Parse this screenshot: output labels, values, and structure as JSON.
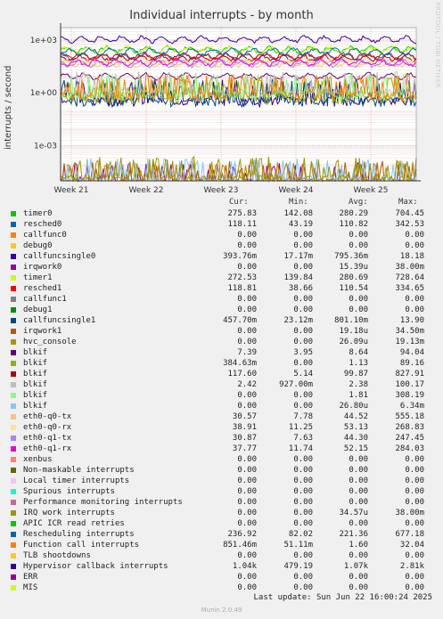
{
  "title": "Individual interrupts - by month",
  "side_text": "RRDTOOL / TOBI OETIKER",
  "ylabel": "interrupts / second",
  "legend_headers": {
    "cur": "Cur:",
    "min": "Min:",
    "avg": "Avg:",
    "max": "Max:"
  },
  "last_update": "Last update: Sun Jun 22 16:00:24 2025",
  "munin_version": "Munin 2.0.49",
  "chart_data": {
    "type": "line",
    "title": "Individual interrupts - by month",
    "ylabel": "interrupts / second",
    "yscale": "log",
    "ylim": [
      1e-05,
      5000
    ],
    "y_ticks": [
      "1e-03",
      "1e+00",
      "1e+03"
    ],
    "x_ticks": [
      "Week 21",
      "Week 22",
      "Week 23",
      "Week 24",
      "Week 25"
    ],
    "grid": true,
    "series": [
      {
        "name": "timer0",
        "color": "#00cc00",
        "cur": "275.83",
        "min": "142.08",
        "avg": "280.29",
        "max": "704.45"
      },
      {
        "name": "resched0",
        "color": "#0066b3",
        "cur": "118.11",
        "min": "43.19",
        "avg": "110.82",
        "max": "342.53"
      },
      {
        "name": "callfunc0",
        "color": "#ff8000",
        "cur": "0.00",
        "min": "0.00",
        "avg": "0.00",
        "max": "0.00"
      },
      {
        "name": "debug0",
        "color": "#ffcc00",
        "cur": "0.00",
        "min": "0.00",
        "avg": "0.00",
        "max": "0.00"
      },
      {
        "name": "callfuncsingle0",
        "color": "#330099",
        "cur": "393.76m",
        "min": "17.17m",
        "avg": "795.36m",
        "max": "18.18"
      },
      {
        "name": "irqwork0",
        "color": "#990099",
        "cur": "0.00",
        "min": "0.00",
        "avg": "15.39u",
        "max": "38.00m"
      },
      {
        "name": "timer1",
        "color": "#ccff00",
        "cur": "272.53",
        "min": "139.84",
        "avg": "280.69",
        "max": "728.64"
      },
      {
        "name": "resched1",
        "color": "#ff0000",
        "cur": "118.81",
        "min": "38.66",
        "avg": "110.54",
        "max": "334.65"
      },
      {
        "name": "callfunc1",
        "color": "#808080",
        "cur": "0.00",
        "min": "0.00",
        "avg": "0.00",
        "max": "0.00"
      },
      {
        "name": "debug1",
        "color": "#008f00",
        "cur": "0.00",
        "min": "0.00",
        "avg": "0.00",
        "max": "0.00"
      },
      {
        "name": "callfuncsingle1",
        "color": "#00487d",
        "cur": "457.70m",
        "min": "23.12m",
        "avg": "801.10m",
        "max": "13.90"
      },
      {
        "name": "irqwork1",
        "color": "#b35a00",
        "cur": "0.00",
        "min": "0.00",
        "avg": "19.18u",
        "max": "34.50m"
      },
      {
        "name": "hvc_console",
        "color": "#b38f00",
        "cur": "0.00",
        "min": "0.00",
        "avg": "26.09u",
        "max": "19.13m"
      },
      {
        "name": "blkif",
        "color": "#6b006b",
        "cur": "7.39",
        "min": "3.95",
        "avg": "8.64",
        "max": "94.04"
      },
      {
        "name": "blkif",
        "color": "#8fb300",
        "cur": "384.63m",
        "min": "0.00",
        "avg": "1.13",
        "max": "89.16"
      },
      {
        "name": "blkif",
        "color": "#b30000",
        "cur": "117.60",
        "min": "5.14",
        "avg": "99.87",
        "max": "827.91"
      },
      {
        "name": "blkif",
        "color": "#bebebe",
        "cur": "2.42",
        "min": "927.00m",
        "avg": "2.38",
        "max": "100.17"
      },
      {
        "name": "blkif",
        "color": "#80ff80",
        "cur": "0.00",
        "min": "0.00",
        "avg": "1.81",
        "max": "308.19"
      },
      {
        "name": "blkif",
        "color": "#80c9ff",
        "cur": "0.00",
        "min": "0.00",
        "avg": "26.80u",
        "max": "6.34m"
      },
      {
        "name": "eth0-q0-tx",
        "color": "#ffc080",
        "cur": "30.57",
        "min": "7.78",
        "avg": "44.52",
        "max": "555.18"
      },
      {
        "name": "eth0-q0-rx",
        "color": "#ffe680",
        "cur": "38.91",
        "min": "11.25",
        "avg": "53.13",
        "max": "268.83"
      },
      {
        "name": "eth0-q1-tx",
        "color": "#aa80ff",
        "cur": "30.87",
        "min": "7.63",
        "avg": "44.30",
        "max": "247.45"
      },
      {
        "name": "eth0-q1-rx",
        "color": "#ee00cc",
        "cur": "37.77",
        "min": "11.74",
        "avg": "52.15",
        "max": "284.03"
      },
      {
        "name": "xenbus",
        "color": "#ff8080",
        "cur": "0.00",
        "min": "0.00",
        "avg": "0.00",
        "max": "0.00"
      },
      {
        "name": "Non-maskable interrupts",
        "color": "#666600",
        "cur": "0.00",
        "min": "0.00",
        "avg": "0.00",
        "max": "0.00"
      },
      {
        "name": "Local timer interrupts",
        "color": "#ffbfff",
        "cur": "0.00",
        "min": "0.00",
        "avg": "0.00",
        "max": "0.00"
      },
      {
        "name": "Spurious interrupts",
        "color": "#00ffcc",
        "cur": "0.00",
        "min": "0.00",
        "avg": "0.00",
        "max": "0.00"
      },
      {
        "name": "Performance monitoring interrupts",
        "color": "#cc6699",
        "cur": "0.00",
        "min": "0.00",
        "avg": "0.00",
        "max": "0.00"
      },
      {
        "name": "IRQ work interrupts",
        "color": "#999900",
        "cur": "0.00",
        "min": "0.00",
        "avg": "34.57u",
        "max": "38.00m"
      },
      {
        "name": "APIC ICR read retries",
        "color": "#00cc00",
        "cur": "0.00",
        "min": "0.00",
        "avg": "0.00",
        "max": "0.00"
      },
      {
        "name": "Rescheduling interrupts",
        "color": "#0066b3",
        "cur": "236.92",
        "min": "82.02",
        "avg": "221.36",
        "max": "677.18"
      },
      {
        "name": "Function call interrupts",
        "color": "#ff8000",
        "cur": "851.46m",
        "min": "51.11m",
        "avg": "1.60",
        "max": "32.04"
      },
      {
        "name": "TLB shootdowns",
        "color": "#ffcc00",
        "cur": "0.00",
        "min": "0.00",
        "avg": "0.00",
        "max": "0.00"
      },
      {
        "name": "Hypervisor callback interrupts",
        "color": "#330099",
        "cur": "1.04k",
        "min": "479.19",
        "avg": "1.07k",
        "max": "2.81k"
      },
      {
        "name": "ERR",
        "color": "#990099",
        "cur": "0.00",
        "min": "0.00",
        "avg": "0.00",
        "max": "0.00"
      },
      {
        "name": "MIS",
        "color": "#ccff00",
        "cur": "0.00",
        "min": "0.00",
        "avg": "0.00",
        "max": "0.00"
      }
    ]
  }
}
